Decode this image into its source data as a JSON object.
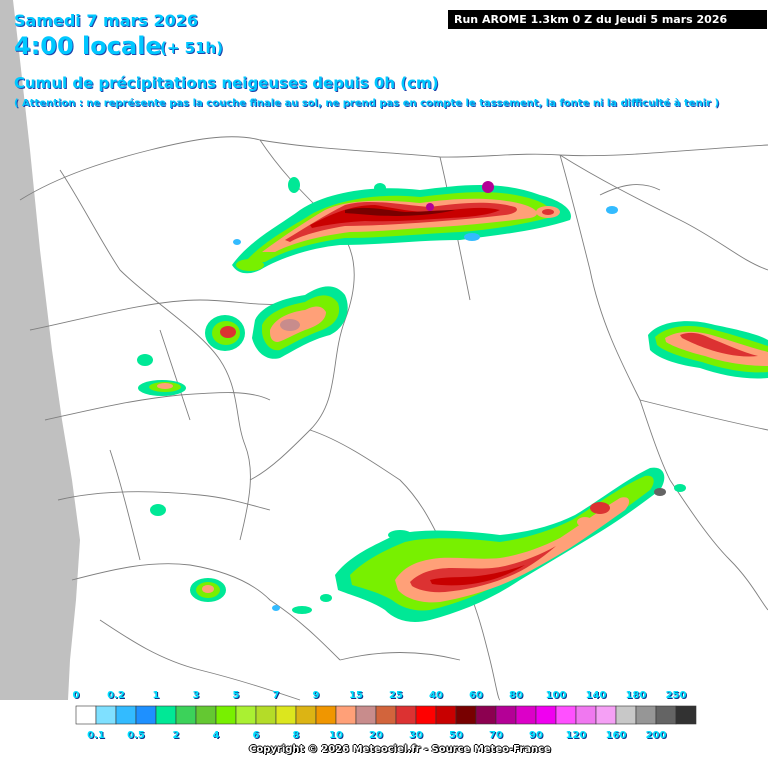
{
  "header": {
    "date": "Samedi 7 mars 2026",
    "time": "4:00 locale",
    "offset": "(+ 51h)",
    "subtitle": "Cumul de précipitations neigeuses depuis 0h (cm)",
    "warning": "( Attention : ne représente pas la couche finale au sol, ne prend pas en compte le tassement, la fonte ni la difficulté à tenir )",
    "run": "Run AROME 1.3km 0 Z du Jeudi 5 mars 2026"
  },
  "legend": {
    "top_labels": [
      "0",
      "0.2",
      "1",
      "3",
      "5",
      "7",
      "9",
      "15",
      "25",
      "40",
      "60",
      "80",
      "100",
      "140",
      "180",
      "250"
    ],
    "bottom_labels": [
      "0.1",
      "0.5",
      "2",
      "4",
      "6",
      "8",
      "10",
      "20",
      "30",
      "50",
      "70",
      "90",
      "120",
      "160",
      "200"
    ],
    "colors": [
      "#ffffff",
      "#7fe0ff",
      "#33bbff",
      "#1e90ff",
      "#00e896",
      "#3cd25a",
      "#64c832",
      "#78f000",
      "#aaf032",
      "#b4dc28",
      "#dce61e",
      "#dcb414",
      "#f09600",
      "#ffa078",
      "#c88c8c",
      "#d2643c",
      "#dc3232",
      "#ff0000",
      "#c80000",
      "#780000",
      "#8c0050",
      "#b40096",
      "#dc00c8",
      "#f000f0",
      "#ff50ff",
      "#f078f0",
      "#f5a0f5",
      "#c8c8c8",
      "#969696",
      "#646464",
      "#323232"
    ]
  },
  "copyright": "Copyright © 2026 Meteociel.fr - Source Meteo-France"
}
